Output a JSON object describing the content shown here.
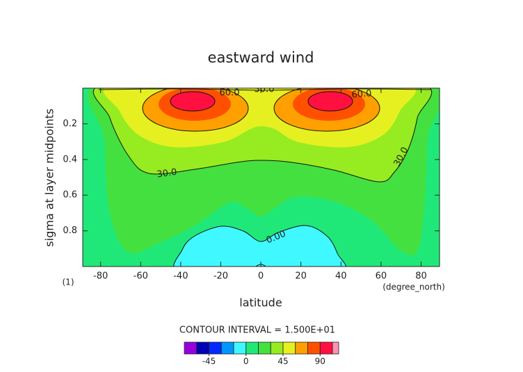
{
  "chart_data": {
    "type": "contour",
    "title": "eastward wind",
    "x_label": "latitude",
    "x_unit_label": "(degree_north)",
    "y_label": "sigma at layer midpoints",
    "panel_label": "(1)",
    "xlim": [
      -88.9,
      89.2
    ],
    "xticks": [
      -80,
      -60,
      -40,
      -20,
      0,
      20,
      40,
      60,
      80
    ],
    "ylim": [
      0,
      1
    ],
    "y_reversed": true,
    "yticks": [
      0.2,
      0.4,
      0.6,
      0.8
    ],
    "contour_interval_label": "CONTOUR INTERVAL = 1.500E+01",
    "contour_labels": [
      {
        "value": 60,
        "label": "60.0"
      },
      {
        "value": 60,
        "label": "60.0"
      },
      {
        "value": 30,
        "label": "30.0"
      },
      {
        "value": 30,
        "label": "30.0"
      },
      {
        "value": 30,
        "label": "30.0"
      },
      {
        "value": 0,
        "label": "0.00"
      }
    ],
    "colorbar": {
      "levels": [
        -75,
        -60,
        -45,
        -30,
        -15,
        0,
        15,
        30,
        45,
        60,
        75,
        90,
        105
      ],
      "colors": [
        "#9600dc",
        "#0000b4",
        "#0028ff",
        "#0096ff",
        "#40f8ff",
        "#20e878",
        "#44e040",
        "#96ec20",
        "#e6f020",
        "#ffa000",
        "#ff5000",
        "#ff1040"
      ],
      "ticks": [
        -45,
        0,
        45,
        90
      ]
    }
  }
}
